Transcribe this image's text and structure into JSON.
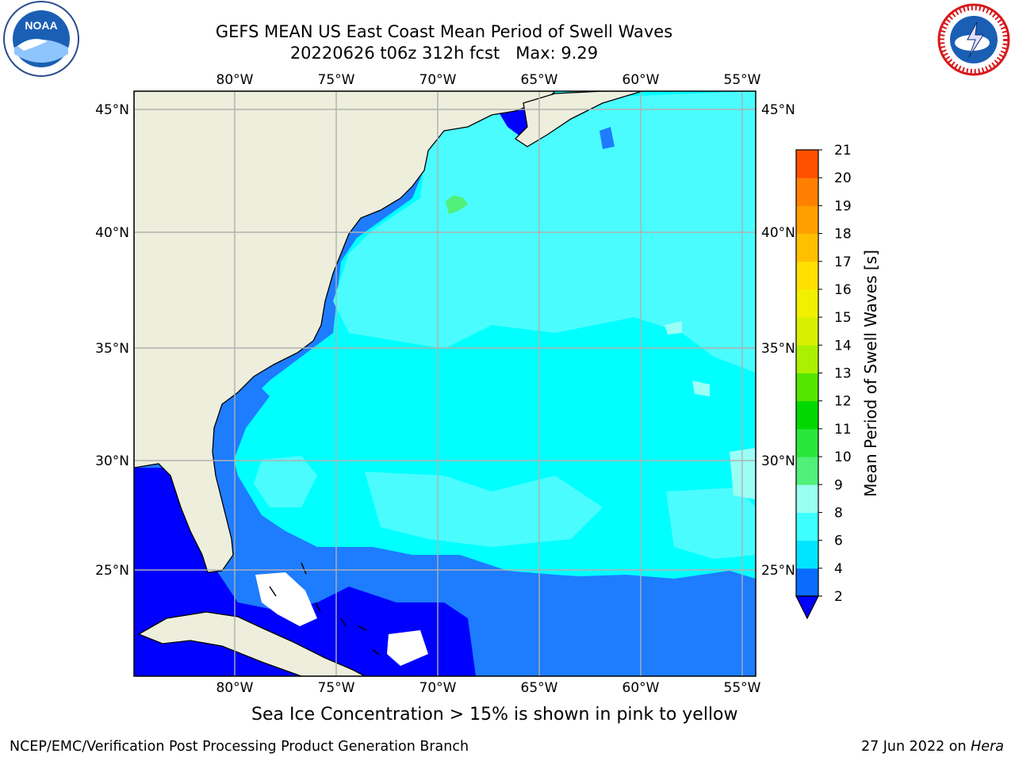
{
  "title": {
    "line1": "GEFS MEAN US East Coast Mean Period of Swell Waves",
    "line2": "20220626 t06z 312h fcst   Max: 9.29"
  },
  "axes": {
    "lon_ticks": [
      "80°W",
      "75°W",
      "70°W",
      "65°W",
      "60°W",
      "55°W"
    ],
    "lat_ticks": [
      "45°N",
      "40°N",
      "35°N",
      "30°N",
      "25°N"
    ]
  },
  "colorbar": {
    "label": "Mean Period of Swell Waves [s]",
    "ticks": [
      "2",
      "4",
      "6",
      "8",
      "9",
      "10",
      "11",
      "12",
      "13",
      "14",
      "15",
      "16",
      "17",
      "18",
      "19",
      "20",
      "21"
    ],
    "colors": [
      "#0a6cff",
      "#00e5ff",
      "#3dffff",
      "#99fff0",
      "#50f07a",
      "#29e63a",
      "#00d800",
      "#55e600",
      "#aaf000",
      "#d8f000",
      "#f0f000",
      "#ffe000",
      "#ffc000",
      "#ffa000",
      "#ff8000",
      "#ff5000",
      "#ff2000",
      "#ff0000"
    ],
    "under_color": "#0000ff"
  },
  "map": {
    "land_color": "#eeeedd",
    "grid_color": "#b0b0b0",
    "palette": {
      "deep_blue": "#0000ff",
      "mid_blue": "#1e7cff",
      "cyan": "#00ffff",
      "light_cyan": "#4bfcff",
      "pale_cyan": "#9cfff6",
      "green": "#50f07a",
      "white_gap": "#ffffff"
    }
  },
  "ice_note": "Sea Ice Concentration > 15% is shown in pink to yellow",
  "footer": {
    "left": "NCEP/EMC/Verification Post Processing Product Generation Branch",
    "right_date": "27 Jun 2022 on ",
    "right_machine": "Hera"
  },
  "logos": {
    "noaa": "NOAA",
    "nws": "NATIONAL WEATHER SERVICE"
  }
}
